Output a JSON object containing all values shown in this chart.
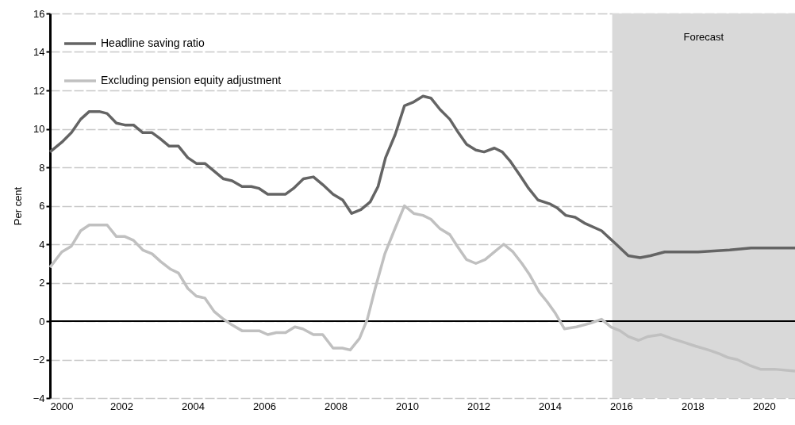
{
  "chart_data": {
    "type": "line",
    "ylabel": "Per cent",
    "xlim": [
      2000,
      2020.87
    ],
    "xticks": [
      2000,
      2002,
      2004,
      2006,
      2008,
      2010,
      2012,
      2014,
      2016,
      2018,
      2020
    ],
    "ylim": [
      -4,
      16
    ],
    "yticks": [
      -4,
      -2,
      0,
      2,
      4,
      6,
      8,
      10,
      12,
      14,
      16
    ],
    "grid": "y",
    "legend": "top left",
    "bands": [
      {
        "axis": "x",
        "from": 2015.75,
        "to": 2020.87,
        "label": "Forecast",
        "color": "#d9d9d9"
      }
    ],
    "series": [
      {
        "name": "Headline saving ratio",
        "color": "#646464",
        "x": [
          2000.0,
          2000.33,
          2000.6,
          2000.86,
          2001.1,
          2001.38,
          2001.6,
          2001.86,
          2002.1,
          2002.34,
          2002.6,
          2002.86,
          2003.08,
          2003.34,
          2003.6,
          2003.86,
          2004.1,
          2004.34,
          2004.6,
          2004.86,
          2005.1,
          2005.38,
          2005.64,
          2005.86,
          2006.1,
          2006.38,
          2006.6,
          2006.82,
          2007.1,
          2007.38,
          2007.64,
          2007.93,
          2008.2,
          2008.45,
          2008.71,
          2008.97,
          2009.19,
          2009.4,
          2009.67,
          2009.93,
          2010.19,
          2010.45,
          2010.67,
          2010.93,
          2011.2,
          2011.44,
          2011.67,
          2011.93,
          2012.16,
          2012.45,
          2012.67,
          2012.9,
          2013.16,
          2013.41,
          2013.67,
          2014.0,
          2014.2,
          2014.45,
          2014.71,
          2014.97,
          2015.45,
          2015.86,
          2016.2,
          2016.53,
          2016.82,
          2017.22,
          2017.71,
          2018.16,
          2019.04,
          2019.64,
          2020.22,
          2020.87
        ],
        "values": [
          8.8,
          9.3,
          9.8,
          10.5,
          10.9,
          10.9,
          10.8,
          10.3,
          10.2,
          10.2,
          9.8,
          9.8,
          9.5,
          9.1,
          9.1,
          8.5,
          8.2,
          8.2,
          7.8,
          7.4,
          7.3,
          7.0,
          7.0,
          6.9,
          6.6,
          6.6,
          6.6,
          6.9,
          7.4,
          7.5,
          7.1,
          6.6,
          6.3,
          5.6,
          5.8,
          6.2,
          7.0,
          8.5,
          9.7,
          11.2,
          11.4,
          11.7,
          11.6,
          11.0,
          10.5,
          9.8,
          9.2,
          8.9,
          8.8,
          9.0,
          8.8,
          8.3,
          7.6,
          6.9,
          6.3,
          6.1,
          5.9,
          5.5,
          5.4,
          5.1,
          4.7,
          4.0,
          3.4,
          3.3,
          3.4,
          3.6,
          3.6,
          3.6,
          3.7,
          3.8,
          3.8,
          3.8
        ]
      },
      {
        "name": "Excluding pension equity adjustment",
        "color": "#c0c0c0",
        "x": [
          2000.0,
          2000.33,
          2000.6,
          2000.86,
          2001.1,
          2001.38,
          2001.6,
          2001.86,
          2002.1,
          2002.34,
          2002.6,
          2002.86,
          2003.1,
          2003.38,
          2003.6,
          2003.86,
          2004.1,
          2004.34,
          2004.6,
          2004.86,
          2005.1,
          2005.38,
          2005.86,
          2006.1,
          2006.34,
          2006.6,
          2006.86,
          2007.08,
          2007.38,
          2007.64,
          2007.93,
          2008.19,
          2008.41,
          2008.67,
          2008.89,
          2009.11,
          2009.38,
          2009.64,
          2009.93,
          2010.19,
          2010.45,
          2010.67,
          2010.93,
          2011.2,
          2011.41,
          2011.67,
          2011.93,
          2012.19,
          2012.45,
          2012.71,
          2012.97,
          2013.22,
          2013.44,
          2013.71,
          2013.93,
          2014.16,
          2014.41,
          2014.75,
          2015.16,
          2015.45,
          2015.71,
          2015.97,
          2016.2,
          2016.49,
          2016.75,
          2017.11,
          2017.41,
          2017.75,
          2018.08,
          2018.45,
          2018.75,
          2019.0,
          2019.25,
          2019.6,
          2019.9,
          2020.3,
          2020.87
        ],
        "values": [
          2.8,
          3.6,
          3.9,
          4.7,
          5.0,
          5.0,
          5.0,
          4.4,
          4.4,
          4.2,
          3.7,
          3.5,
          3.1,
          2.7,
          2.5,
          1.7,
          1.3,
          1.2,
          0.5,
          0.1,
          -0.2,
          -0.5,
          -0.5,
          -0.7,
          -0.6,
          -0.6,
          -0.3,
          -0.4,
          -0.7,
          -0.7,
          -1.4,
          -1.4,
          -1.5,
          -0.9,
          0.1,
          1.7,
          3.5,
          4.7,
          6.0,
          5.6,
          5.5,
          5.3,
          4.8,
          4.5,
          3.9,
          3.2,
          3.0,
          3.2,
          3.6,
          4.0,
          3.6,
          3.0,
          2.4,
          1.5,
          1.0,
          0.4,
          -0.4,
          -0.3,
          -0.1,
          0.1,
          -0.3,
          -0.5,
          -0.8,
          -1.0,
          -0.8,
          -0.7,
          -0.9,
          -1.1,
          -1.3,
          -1.5,
          -1.7,
          -1.9,
          -2.0,
          -2.3,
          -2.5,
          -2.5,
          -2.6
        ]
      }
    ]
  }
}
